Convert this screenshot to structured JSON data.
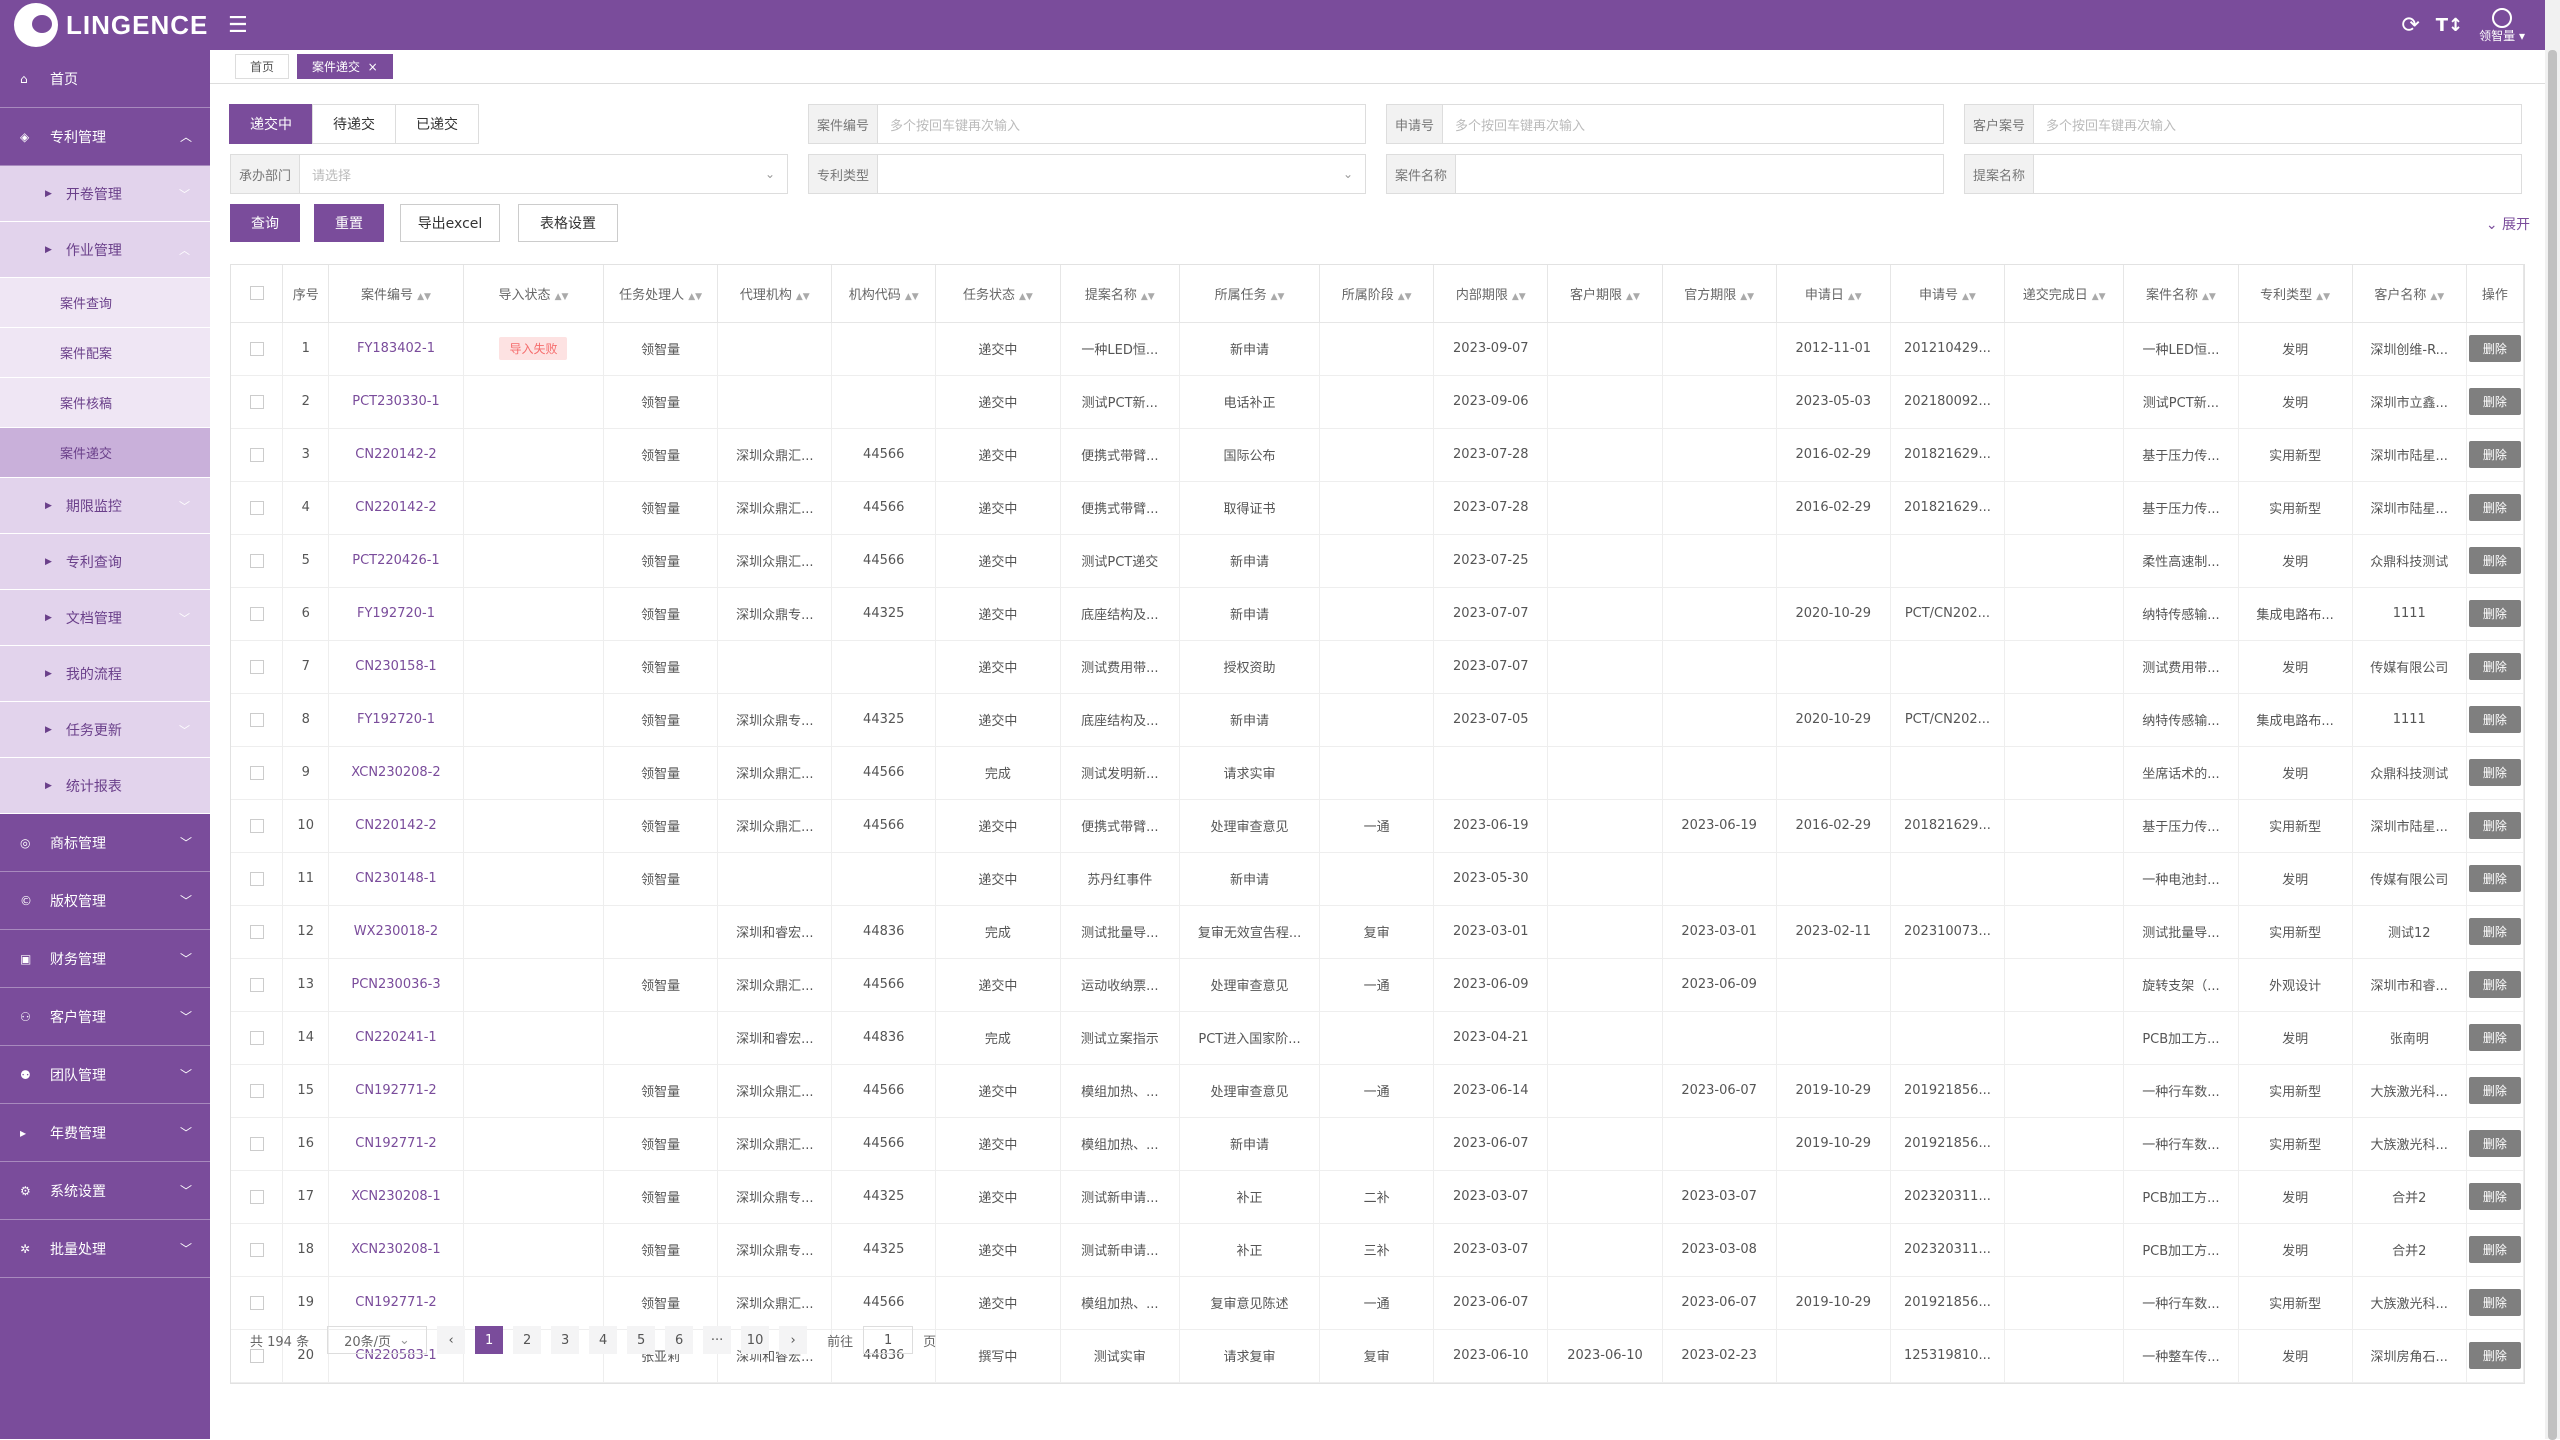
{
  "brand": {
    "name": "LINGENCE",
    "accent": "#7a4c9b"
  },
  "topbar": {
    "menu_icon": "hamburger-icon",
    "user_name": "领智量"
  },
  "sidebar": {
    "items": [
      {
        "label": "首页",
        "icon": "home-icon"
      },
      {
        "label": "专利管理",
        "icon": "patent-icon",
        "expanded": true,
        "children": [
          {
            "label": "开卷管理"
          },
          {
            "label": "作业管理",
            "expanded": true,
            "children": [
              {
                "label": "案件查询"
              },
              {
                "label": "案件配案"
              },
              {
                "label": "案件核稿"
              },
              {
                "label": "案件递交",
                "active": true
              }
            ]
          },
          {
            "label": "期限监控"
          },
          {
            "label": "专利查询"
          },
          {
            "label": "文档管理"
          },
          {
            "label": "我的流程"
          },
          {
            "label": "任务更新"
          },
          {
            "label": "统计报表"
          }
        ]
      },
      {
        "label": "商标管理",
        "icon": "trademark-icon"
      },
      {
        "label": "版权管理",
        "icon": "copyright-icon"
      },
      {
        "label": "财务管理",
        "icon": "finance-icon"
      },
      {
        "label": "客户管理",
        "icon": "customer-icon"
      },
      {
        "label": "团队管理",
        "icon": "team-icon"
      },
      {
        "label": "年费管理",
        "icon": "fee-icon"
      },
      {
        "label": "系统设置",
        "icon": "settings-icon"
      },
      {
        "label": "批量处理",
        "icon": "batch-icon"
      }
    ]
  },
  "tabs": [
    {
      "label": "首页"
    },
    {
      "label": "案件递交",
      "closable": "×",
      "active": true
    }
  ],
  "status_tabs": [
    "递交中",
    "待递交",
    "已递交"
  ],
  "filters": {
    "case_no": {
      "label": "案件编号",
      "placeholder": "多个按回车键再次输入"
    },
    "app_no": {
      "label": "申请号",
      "placeholder": "多个按回车键再次输入"
    },
    "client_no": {
      "label": "客户案号",
      "placeholder": "多个按回车键再次输入"
    },
    "dept": {
      "label": "承办部门",
      "placeholder": "请选择"
    },
    "patent_type": {
      "label": "专利类型",
      "placeholder": ""
    },
    "case_name": {
      "label": "案件名称",
      "placeholder": ""
    },
    "proposal_name": {
      "label": "提案名称",
      "placeholder": ""
    }
  },
  "actions": {
    "query": "查询",
    "reset": "重置",
    "export": "导出excel",
    "table_settings": "表格设置",
    "expand": "展开"
  },
  "table": {
    "headers": [
      "序号",
      "案件编号",
      "导入状态",
      "任务处理人",
      "代理机构",
      "机构代码",
      "任务状态",
      "提案名称",
      "所属任务",
      "所属阶段",
      "内部期限",
      "客户期限",
      "官方期限",
      "申请日",
      "申请号",
      "递交完成日",
      "案件名称",
      "专利类型",
      "客户名称",
      "操作"
    ],
    "delete_label": "删除",
    "rows": [
      [
        "1",
        "FY183402-1",
        "导入失败",
        "领智量",
        "",
        "",
        "递交中",
        "一种LED恒...",
        "新申请",
        "",
        "2023-09-07",
        "",
        "",
        "2012-11-01",
        "201210429...",
        "",
        "一种LED恒...",
        "发明",
        "深圳创维-R..."
      ],
      [
        "2",
        "PCT230330-1",
        "",
        "领智量",
        "",
        "",
        "递交中",
        "测试PCT新...",
        "电话补正",
        "",
        "2023-09-06",
        "",
        "",
        "2023-05-03",
        "202180092...",
        "",
        "测试PCT新...",
        "发明",
        "深圳市立鑫..."
      ],
      [
        "3",
        "CN220142-2",
        "",
        "领智量",
        "深圳众鼎汇...",
        "44566",
        "递交中",
        "便携式带臂...",
        "国际公布",
        "",
        "2023-07-28",
        "",
        "",
        "2016-02-29",
        "201821629...",
        "",
        "基于压力传...",
        "实用新型",
        "深圳市陆星..."
      ],
      [
        "4",
        "CN220142-2",
        "",
        "领智量",
        "深圳众鼎汇...",
        "44566",
        "递交中",
        "便携式带臂...",
        "取得证书",
        "",
        "2023-07-28",
        "",
        "",
        "2016-02-29",
        "201821629...",
        "",
        "基于压力传...",
        "实用新型",
        "深圳市陆星..."
      ],
      [
        "5",
        "PCT220426-1",
        "",
        "领智量",
        "深圳众鼎汇...",
        "44566",
        "递交中",
        "测试PCT递交",
        "新申请",
        "",
        "2023-07-25",
        "",
        "",
        "",
        "",
        "",
        "柔性高速制...",
        "发明",
        "众鼎科技测试"
      ],
      [
        "6",
        "FY192720-1",
        "",
        "领智量",
        "深圳众鼎专...",
        "44325",
        "递交中",
        "底座结构及...",
        "新申请",
        "",
        "2023-07-07",
        "",
        "",
        "2020-10-29",
        "PCT/CN202...",
        "",
        "纳特传感输...",
        "集成电路布...",
        "1111"
      ],
      [
        "7",
        "CN230158-1",
        "",
        "领智量",
        "",
        "",
        "递交中",
        "测试费用带...",
        "授权资助",
        "",
        "2023-07-07",
        "",
        "",
        "",
        "",
        "",
        "测试费用带...",
        "发明",
        "传媒有限公司"
      ],
      [
        "8",
        "FY192720-1",
        "",
        "领智量",
        "深圳众鼎专...",
        "44325",
        "递交中",
        "底座结构及...",
        "新申请",
        "",
        "2023-07-05",
        "",
        "",
        "2020-10-29",
        "PCT/CN202...",
        "",
        "纳特传感输...",
        "集成电路布...",
        "1111"
      ],
      [
        "9",
        "XCN230208-2",
        "",
        "领智量",
        "深圳众鼎汇...",
        "44566",
        "完成",
        "测试发明新...",
        "请求实审",
        "",
        "",
        "",
        "",
        "",
        "",
        "",
        "坐席话术的...",
        "发明",
        "众鼎科技测试"
      ],
      [
        "10",
        "CN220142-2",
        "",
        "领智量",
        "深圳众鼎汇...",
        "44566",
        "递交中",
        "便携式带臂...",
        "处理审查意见",
        "一通",
        "2023-06-19",
        "",
        "2023-06-19",
        "2016-02-29",
        "201821629...",
        "",
        "基于压力传...",
        "实用新型",
        "深圳市陆星..."
      ],
      [
        "11",
        "CN230148-1",
        "",
        "领智量",
        "",
        "",
        "递交中",
        "苏丹红事件",
        "新申请",
        "",
        "2023-05-30",
        "",
        "",
        "",
        "",
        "",
        "一种电池封...",
        "发明",
        "传媒有限公司"
      ],
      [
        "12",
        "WX230018-2",
        "",
        "",
        "深圳和睿宏...",
        "44836",
        "完成",
        "测试批量导...",
        "复审无效宣告程...",
        "复审",
        "2023-03-01",
        "",
        "2023-03-01",
        "2023-02-11",
        "202310073...",
        "",
        "测试批量导...",
        "实用新型",
        "测试12"
      ],
      [
        "13",
        "PCN230036-3",
        "",
        "领智量",
        "深圳众鼎汇...",
        "44566",
        "递交中",
        "运动收纳票...",
        "处理审查意见",
        "一通",
        "2023-06-09",
        "",
        "2023-06-09",
        "",
        "",
        "",
        "旋转支架（...",
        "外观设计",
        "深圳市和睿..."
      ],
      [
        "14",
        "CN220241-1",
        "",
        "",
        "深圳和睿宏...",
        "44836",
        "完成",
        "测试立案指示",
        "PCT进入国家阶...",
        "",
        "2023-04-21",
        "",
        "",
        "",
        "",
        "",
        "PCB加工方...",
        "发明",
        "张南明"
      ],
      [
        "15",
        "CN192771-2",
        "",
        "领智量",
        "深圳众鼎汇...",
        "44566",
        "递交中",
        "模组加热、...",
        "处理审查意见",
        "一通",
        "2023-06-14",
        "",
        "2023-06-07",
        "2019-10-29",
        "201921856...",
        "",
        "一种行车数...",
        "实用新型",
        "大族激光科..."
      ],
      [
        "16",
        "CN192771-2",
        "",
        "领智量",
        "深圳众鼎汇...",
        "44566",
        "递交中",
        "模组加热、...",
        "新申请",
        "",
        "2023-06-07",
        "",
        "",
        "2019-10-29",
        "201921856...",
        "",
        "一种行车数...",
        "实用新型",
        "大族激光科..."
      ],
      [
        "17",
        "XCN230208-1",
        "",
        "领智量",
        "深圳众鼎专...",
        "44325",
        "递交中",
        "测试新申请...",
        "补正",
        "二补",
        "2023-03-07",
        "",
        "2023-03-07",
        "",
        "202320311...",
        "",
        "PCB加工方...",
        "发明",
        "合并2"
      ],
      [
        "18",
        "XCN230208-1",
        "",
        "领智量",
        "深圳众鼎专...",
        "44325",
        "递交中",
        "测试新申请...",
        "补正",
        "三补",
        "2023-03-07",
        "",
        "2023-03-08",
        "",
        "202320311...",
        "",
        "PCB加工方...",
        "发明",
        "合并2"
      ],
      [
        "19",
        "CN192771-2",
        "",
        "领智量",
        "深圳众鼎汇...",
        "44566",
        "递交中",
        "模组加热、...",
        "复审意见陈述",
        "一通",
        "2023-06-07",
        "",
        "2023-06-07",
        "2019-10-29",
        "201921856...",
        "",
        "一种行车数...",
        "实用新型",
        "大族激光科..."
      ],
      [
        "20",
        "CN220583-1",
        "",
        "张亚莉",
        "深圳和睿宏...",
        "44836",
        "撰写中",
        "测试实审",
        "请求复审",
        "复审",
        "2023-06-10",
        "2023-06-10",
        "2023-02-23",
        "",
        "125319810...",
        "",
        "一种整车传...",
        "发明",
        "深圳房角石..."
      ]
    ]
  },
  "pagination": {
    "total": "共 194 条",
    "page_size": "20条/页",
    "pages": [
      "1",
      "2",
      "3",
      "4",
      "5",
      "6",
      "···",
      "10"
    ],
    "current": "1",
    "prev": "‹",
    "next": "›",
    "goto_prefix": "前往",
    "goto_value": "1",
    "goto_suffix": "页"
  }
}
